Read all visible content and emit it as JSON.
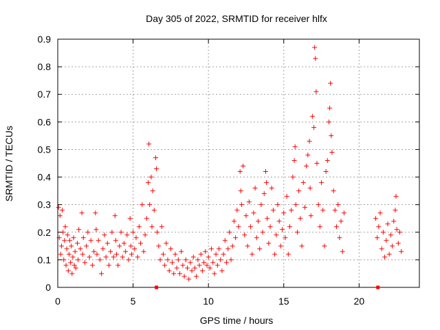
{
  "chart_data": {
    "type": "scatter",
    "title": "Day 305 of 2022, SRMTID for receiver hlfx",
    "xlabel": "GPS time / hours",
    "ylabel": "SRMTID / TECUs",
    "xlim": [
      0,
      24
    ],
    "ylim": [
      0,
      0.9
    ],
    "xticks": [
      0,
      5,
      10,
      15,
      20
    ],
    "yticks": [
      0,
      0.1,
      0.2,
      0.3,
      0.4,
      0.5,
      0.6,
      0.7,
      0.8,
      0.9
    ],
    "xtick_labels": [
      "0",
      "5",
      "10",
      "15",
      "20"
    ],
    "ytick_labels": [
      "0",
      "0.1",
      "0.2",
      "0.3",
      "0.4",
      "0.5",
      "0.6",
      "0.7",
      "0.8",
      "0.9"
    ],
    "grid": true,
    "marker": "+",
    "color": "#ff0000",
    "series": [
      {
        "name": "SRMTID",
        "points": [
          [
            0.05,
            0.29
          ],
          [
            0.1,
            0.18
          ],
          [
            0.15,
            0.26
          ],
          [
            0.2,
            0.12
          ],
          [
            0.25,
            0.15
          ],
          [
            0.3,
            0.28
          ],
          [
            0.35,
            0.2
          ],
          [
            0.4,
            0.1
          ],
          [
            0.45,
            0.17
          ],
          [
            0.5,
            0.22
          ],
          [
            0.55,
            0.08
          ],
          [
            0.6,
            0.14
          ],
          [
            0.65,
            0.19
          ],
          [
            0.7,
            0.06
          ],
          [
            0.75,
            0.12
          ],
          [
            0.8,
            0.17
          ],
          [
            0.85,
            0.09
          ],
          [
            0.9,
            0.15
          ],
          [
            0.95,
            0.05
          ],
          [
            1.0,
            0.11
          ],
          [
            1.05,
            0.18
          ],
          [
            1.1,
            0.08
          ],
          [
            1.15,
            0.13
          ],
          [
            1.2,
            0.07
          ],
          [
            1.3,
            0.16
          ],
          [
            1.35,
            0.1
          ],
          [
            1.4,
            0.21
          ],
          [
            1.5,
            0.14
          ],
          [
            1.6,
            0.27
          ],
          [
            1.65,
            0.12
          ],
          [
            1.7,
            0.18
          ],
          [
            1.8,
            0.09
          ],
          [
            1.9,
            0.15
          ],
          [
            2.0,
            0.2
          ],
          [
            2.1,
            0.11
          ],
          [
            2.2,
            0.17
          ],
          [
            2.3,
            0.08
          ],
          [
            2.4,
            0.13
          ],
          [
            2.5,
            0.27
          ],
          [
            2.55,
            0.21
          ],
          [
            2.6,
            0.12
          ],
          [
            2.7,
            0.17
          ],
          [
            2.8,
            0.1
          ],
          [
            2.9,
            0.05
          ],
          [
            3.0,
            0.14
          ],
          [
            3.1,
            0.19
          ],
          [
            3.2,
            0.11
          ],
          [
            3.3,
            0.16
          ],
          [
            3.4,
            0.08
          ],
          [
            3.5,
            0.13
          ],
          [
            3.6,
            0.2
          ],
          [
            3.7,
            0.11
          ],
          [
            3.8,
            0.26
          ],
          [
            3.85,
            0.17
          ],
          [
            3.9,
            0.12
          ],
          [
            4.0,
            0.08
          ],
          [
            4.1,
            0.15
          ],
          [
            4.2,
            0.2
          ],
          [
            4.3,
            0.11
          ],
          [
            4.4,
            0.16
          ],
          [
            4.5,
            0.13
          ],
          [
            4.6,
            0.19
          ],
          [
            4.7,
            0.1
          ],
          [
            4.8,
            0.25
          ],
          [
            4.85,
            0.15
          ],
          [
            4.9,
            0.12
          ],
          [
            5.0,
            0.2
          ],
          [
            5.1,
            0.14
          ],
          [
            5.2,
            0.18
          ],
          [
            5.3,
            0.11
          ],
          [
            5.4,
            0.22
          ],
          [
            5.5,
            0.16
          ],
          [
            5.6,
            0.3
          ],
          [
            5.7,
            0.13
          ],
          [
            5.8,
            0.19
          ],
          [
            5.9,
            0.25
          ],
          [
            6.0,
            0.38
          ],
          [
            6.05,
            0.52
          ],
          [
            6.1,
            0.3
          ],
          [
            6.2,
            0.4
          ],
          [
            6.25,
            0.22
          ],
          [
            6.3,
            0.35
          ],
          [
            6.4,
            0.28
          ],
          [
            6.5,
            0.47
          ],
          [
            6.55,
            0.43
          ],
          [
            6.6,
            0.2
          ],
          [
            6.7,
            0.15
          ],
          [
            6.8,
            0.1
          ],
          [
            6.9,
            0.22
          ],
          [
            7.0,
            0.12
          ],
          [
            7.1,
            0.08
          ],
          [
            7.2,
            0.16
          ],
          [
            7.3,
            0.1
          ],
          [
            7.4,
            0.06
          ],
          [
            7.5,
            0.14
          ],
          [
            7.6,
            0.09
          ],
          [
            7.7,
            0.05
          ],
          [
            7.8,
            0.12
          ],
          [
            7.9,
            0.07
          ],
          [
            8.0,
            0.1
          ],
          [
            8.1,
            0.05
          ],
          [
            8.2,
            0.13
          ],
          [
            8.3,
            0.08
          ],
          [
            8.4,
            0.04
          ],
          [
            8.5,
            0.1
          ],
          [
            8.6,
            0.07
          ],
          [
            8.7,
            0.03
          ],
          [
            8.8,
            0.09
          ],
          [
            8.9,
            0.06
          ],
          [
            9.0,
            0.11
          ],
          [
            9.1,
            0.07
          ],
          [
            9.2,
            0.04
          ],
          [
            9.3,
            0.1
          ],
          [
            9.4,
            0.08
          ],
          [
            9.5,
            0.12
          ],
          [
            9.6,
            0.06
          ],
          [
            9.7,
            0.09
          ],
          [
            9.8,
            0.13
          ],
          [
            9.9,
            0.08
          ],
          [
            10.0,
            0.11
          ],
          [
            10.1,
            0.07
          ],
          [
            10.2,
            0.14
          ],
          [
            10.3,
            0.09
          ],
          [
            10.4,
            0.05
          ],
          [
            10.5,
            0.12
          ],
          [
            10.6,
            0.08
          ],
          [
            10.7,
            0.14
          ],
          [
            10.8,
            0.1
          ],
          [
            10.9,
            0.06
          ],
          [
            11.0,
            0.12
          ],
          [
            11.1,
            0.17
          ],
          [
            11.2,
            0.09
          ],
          [
            11.3,
            0.14
          ],
          [
            11.4,
            0.2
          ],
          [
            11.5,
            0.1
          ],
          [
            11.6,
            0.15
          ],
          [
            11.7,
            0.24
          ],
          [
            11.8,
            0.18
          ],
          [
            11.9,
            0.28
          ],
          [
            12.0,
            0.22
          ],
          [
            12.1,
            0.42
          ],
          [
            12.15,
            0.35
          ],
          [
            12.2,
            0.3
          ],
          [
            12.3,
            0.44
          ],
          [
            12.4,
            0.19
          ],
          [
            12.5,
            0.26
          ],
          [
            12.6,
            0.15
          ],
          [
            12.7,
            0.31
          ],
          [
            12.8,
            0.22
          ],
          [
            12.9,
            0.12
          ],
          [
            13.0,
            0.27
          ],
          [
            13.1,
            0.36
          ],
          [
            13.2,
            0.18
          ],
          [
            13.3,
            0.24
          ],
          [
            13.4,
            0.14
          ],
          [
            13.5,
            0.3
          ],
          [
            13.6,
            0.2
          ],
          [
            13.7,
            0.34
          ],
          [
            13.8,
            0.42
          ],
          [
            13.85,
            0.38
          ],
          [
            13.9,
            0.25
          ],
          [
            14.0,
            0.16
          ],
          [
            14.1,
            0.22
          ],
          [
            14.2,
            0.36
          ],
          [
            14.3,
            0.28
          ],
          [
            14.4,
            0.12
          ],
          [
            14.5,
            0.19
          ],
          [
            14.6,
            0.3
          ],
          [
            14.7,
            0.24
          ],
          [
            14.8,
            0.15
          ],
          [
            14.9,
            0.21
          ],
          [
            15.0,
            0.27
          ],
          [
            15.1,
            0.18
          ],
          [
            15.2,
            0.33
          ],
          [
            15.3,
            0.12
          ],
          [
            15.4,
            0.22
          ],
          [
            15.5,
            0.28
          ],
          [
            15.6,
            0.4
          ],
          [
            15.7,
            0.46
          ],
          [
            15.75,
            0.51
          ],
          [
            15.8,
            0.3
          ],
          [
            15.9,
            0.2
          ],
          [
            16.0,
            0.35
          ],
          [
            16.1,
            0.25
          ],
          [
            16.2,
            0.15
          ],
          [
            16.3,
            0.38
          ],
          [
            16.4,
            0.29
          ],
          [
            16.5,
            0.44
          ],
          [
            16.6,
            0.48
          ],
          [
            16.7,
            0.53
          ],
          [
            16.75,
            0.36
          ],
          [
            16.8,
            0.26
          ],
          [
            16.9,
            0.62
          ],
          [
            17.0,
            0.58
          ],
          [
            17.05,
            0.87
          ],
          [
            17.1,
            0.83
          ],
          [
            17.15,
            0.71
          ],
          [
            17.2,
            0.45
          ],
          [
            17.3,
            0.3
          ],
          [
            17.4,
            0.22
          ],
          [
            17.5,
            0.38
          ],
          [
            17.6,
            0.28
          ],
          [
            17.7,
            0.15
          ],
          [
            17.8,
            0.42
          ],
          [
            17.9,
            0.46
          ],
          [
            18.0,
            0.6
          ],
          [
            18.05,
            0.65
          ],
          [
            18.1,
            0.74
          ],
          [
            18.15,
            0.55
          ],
          [
            18.2,
            0.49
          ],
          [
            18.3,
            0.35
          ],
          [
            18.4,
            0.28
          ],
          [
            18.5,
            0.22
          ],
          [
            18.6,
            0.3
          ],
          [
            18.7,
            0.18
          ],
          [
            18.8,
            0.24
          ],
          [
            18.9,
            0.13
          ],
          [
            19.0,
            0.27
          ],
          [
            21.1,
            0.25
          ],
          [
            21.2,
            0.18
          ],
          [
            21.3,
            0.22
          ],
          [
            21.4,
            0.27
          ],
          [
            21.5,
            0.14
          ],
          [
            21.6,
            0.2
          ],
          [
            21.7,
            0.11
          ],
          [
            21.8,
            0.17
          ],
          [
            21.9,
            0.23
          ],
          [
            22.0,
            0.12
          ],
          [
            22.1,
            0.19
          ],
          [
            22.2,
            0.15
          ],
          [
            22.3,
            0.24
          ],
          [
            22.4,
            0.28
          ],
          [
            22.45,
            0.33
          ],
          [
            22.5,
            0.21
          ],
          [
            22.6,
            0.16
          ],
          [
            22.7,
            0.2
          ],
          [
            22.8,
            0.13
          ]
        ]
      }
    ],
    "axis_markers": [
      6.55,
      21.25
    ]
  }
}
